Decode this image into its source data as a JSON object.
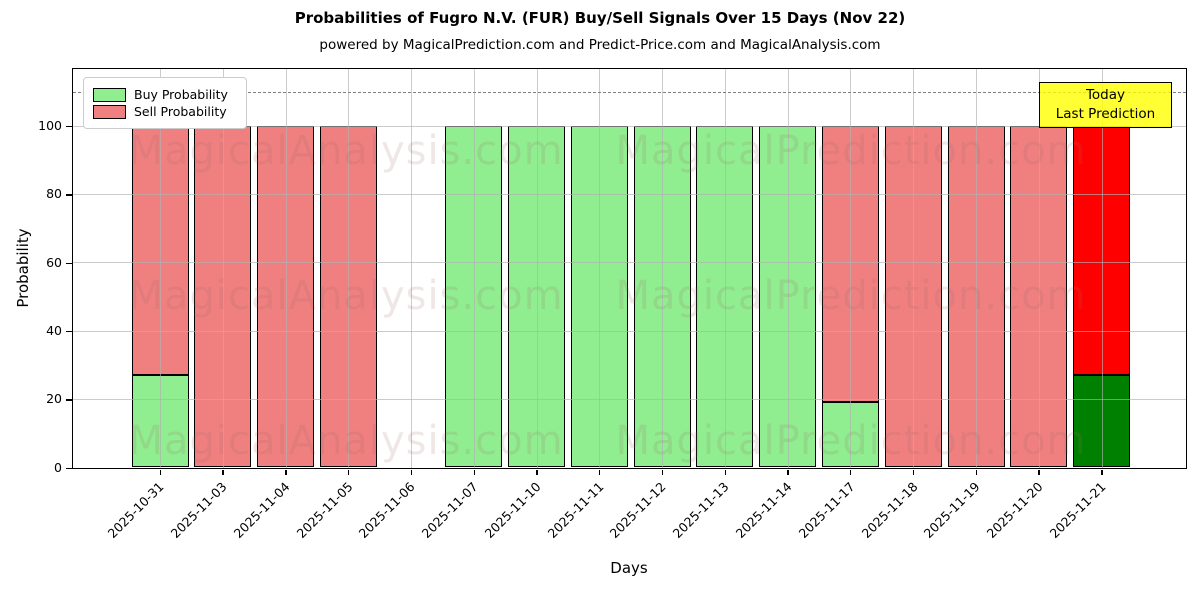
{
  "title": "Probabilities of Fugro N.V. (FUR) Buy/Sell Signals Over 15 Days (Nov 22)",
  "subtitle": "powered by MagicalPrediction.com and Predict-Price.com and MagicalAnalysis.com",
  "axes": {
    "x_label": "Days",
    "y_label": "Probability",
    "y_ticks": [
      0,
      20,
      40,
      60,
      80,
      100
    ],
    "y_max": 116.6,
    "threshold_value": 110
  },
  "legend": [
    {
      "label": "Buy Probability",
      "color": "#90EE90"
    },
    {
      "label": "Sell Probability",
      "color": "#F08080"
    }
  ],
  "annotation": {
    "lines": [
      "Today",
      "Last Prediction"
    ],
    "bg_color": "#FFFF00"
  },
  "watermarks": {
    "left_text": "MagicalAnalysis.com",
    "right_text": "MagicalPrediction.com"
  },
  "chart_data": {
    "type": "bar",
    "stacked": true,
    "title": "Probabilities of Fugro N.V. (FUR) Buy/Sell Signals Over 15 Days (Nov 22)",
    "xlabel": "Days",
    "ylabel": "Probability",
    "ylim": [
      0,
      116.6
    ],
    "grid": true,
    "legend_position": "upper-left",
    "categories": [
      "2025-10-31",
      "2025-11-03",
      "2025-11-04",
      "2025-11-05",
      "2025-11-06",
      "2025-11-07",
      "2025-11-10",
      "2025-11-11",
      "2025-11-12",
      "2025-11-13",
      "2025-11-14",
      "2025-11-17",
      "2025-11-18",
      "2025-11-19",
      "2025-11-20",
      "2025-11-21"
    ],
    "series": [
      {
        "name": "Buy Probability",
        "color": "#90EE90",
        "today_color": "#008000",
        "values": [
          27,
          0,
          0,
          0,
          0,
          100,
          100,
          100,
          100,
          100,
          100,
          19,
          0,
          0,
          0,
          27
        ]
      },
      {
        "name": "Sell Probability",
        "color": "#F08080",
        "today_color": "#FF0000",
        "values": [
          73,
          100,
          100,
          100,
          0,
          0,
          0,
          0,
          0,
          0,
          0,
          81,
          100,
          100,
          100,
          73
        ]
      }
    ],
    "today_index": 15,
    "threshold_line": 110
  }
}
